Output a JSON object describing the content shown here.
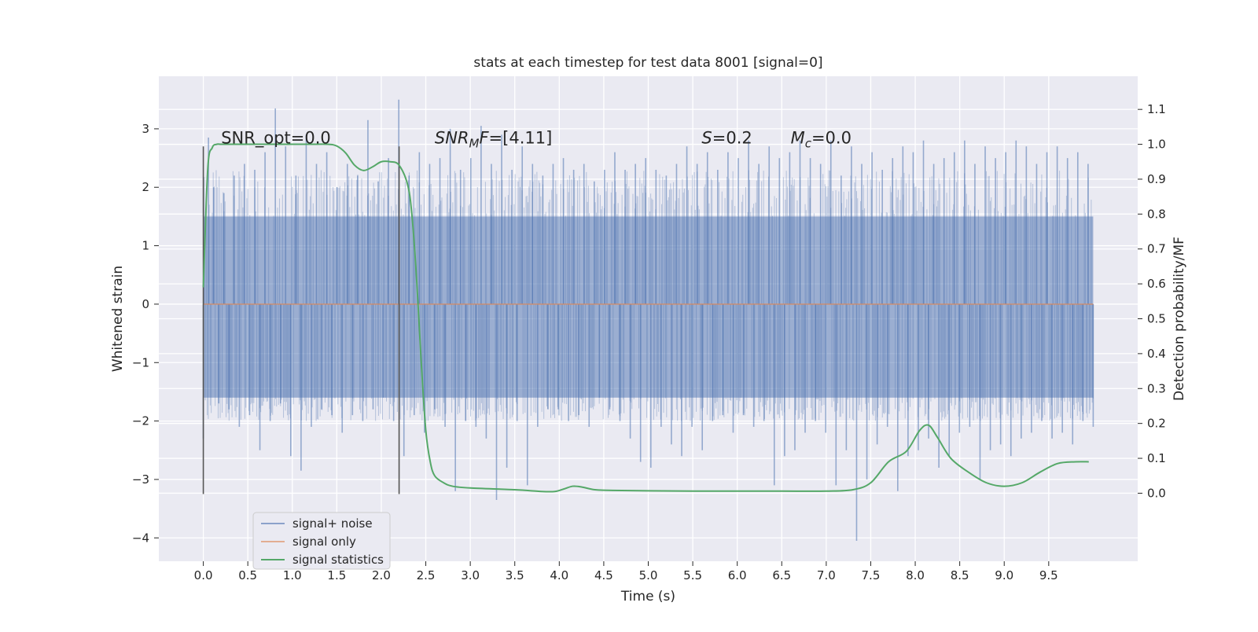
{
  "chart_data": {
    "type": "line",
    "title": "stats at each timestep for test data 8001 [signal=0]",
    "xlabel": "Time (s)",
    "ylabel": "Whitened strain",
    "y2label": "Detection probability/MF",
    "xlim": [
      -0.5,
      10.5
    ],
    "ylim": [
      -4.4,
      3.9
    ],
    "y2lim": [
      -0.195,
      1.195
    ],
    "x_ticks": [
      0.0,
      0.5,
      1.0,
      1.5,
      2.0,
      2.5,
      3.0,
      3.5,
      4.0,
      4.5,
      5.0,
      5.5,
      6.0,
      6.5,
      7.0,
      7.5,
      8.0,
      8.5,
      9.0,
      9.5
    ],
    "x_tick_labels": [
      "0.0",
      "0.5",
      "1.0",
      "1.5",
      "2.0",
      "2.5",
      "3.0",
      "3.5",
      "4.0",
      "4.5",
      "5.0",
      "5.5",
      "6.0",
      "6.5",
      "7.0",
      "7.5",
      "8.0",
      "8.5",
      "9.0",
      "9.5"
    ],
    "y_ticks": [
      -4,
      -3,
      -2,
      -1,
      0,
      1,
      2,
      3
    ],
    "y_tick_labels": [
      "−4",
      "−3",
      "−2",
      "−1",
      "0",
      "1",
      "2",
      "3"
    ],
    "y2_ticks": [
      0.0,
      0.1,
      0.2,
      0.3,
      0.4,
      0.5,
      0.6,
      0.7,
      0.8,
      0.9,
      1.0,
      1.1
    ],
    "y2_tick_labels": [
      "0.0",
      "0.1",
      "0.2",
      "0.3",
      "0.4",
      "0.5",
      "0.6",
      "0.7",
      "0.8",
      "0.9",
      "1.0",
      "1.1"
    ],
    "grid": true,
    "legend_position": "lower-left",
    "series": [
      {
        "name": "signal+ noise",
        "color": "#4c72b0",
        "axis": "left",
        "x_range": [
          0.0,
          10.0
        ],
        "sample_rate_hz": 100,
        "typical_range": [
          -1.6,
          1.5
        ],
        "values": [
          -2.3,
          2.85,
          2.0,
          -1.7,
          1.9,
          -1.8,
          2.2,
          -2.1,
          2.4,
          -1.9,
          2.3,
          -2.5,
          2.6,
          -2.0,
          3.35,
          -1.7,
          2.7,
          -2.6,
          2.2,
          -2.85,
          2.9,
          -2.1,
          2.4,
          -1.8,
          2.6,
          -1.9,
          2.0,
          -2.2,
          2.4,
          -1.9,
          2.2,
          -2.0,
          3.15,
          -1.8,
          2.1,
          -1.6,
          2.5,
          -2.0,
          3.5,
          -2.6,
          2.2,
          -1.9,
          2.6,
          -2.2,
          2.4,
          -1.8,
          2.5,
          -2.1,
          3.0,
          -3.2,
          2.3,
          -2.0,
          2.5,
          -2.1,
          3.05,
          -2.3,
          2.4,
          -3.35,
          2.9,
          -2.8,
          2.3,
          -2.0,
          2.7,
          -3.1,
          2.4,
          -2.1,
          2.2,
          -1.8,
          2.4,
          -1.8,
          2.5,
          -2.0,
          2.3,
          -1.9,
          2.4,
          -2.1,
          2.1,
          -1.6,
          2.3,
          -1.8,
          2.6,
          -2.0,
          2.3,
          -2.3,
          2.4,
          -2.7,
          2.5,
          -2.8,
          2.3,
          -2.1,
          2.2,
          -2.4,
          2.4,
          -2.6,
          2.7,
          -2.1,
          2.4,
          -2.5,
          2.6,
          -2.0,
          2.3,
          -1.9,
          2.6,
          -2.2,
          2.5,
          -1.9,
          2.8,
          -2.1,
          2.4,
          -2.0,
          2.7,
          -3.1,
          2.5,
          -2.6,
          2.6,
          -2.5,
          2.8,
          -2.2,
          2.5,
          -2.0,
          2.4,
          -2.2,
          2.8,
          -3.1,
          2.2,
          -2.5,
          2.7,
          -4.05,
          2.4,
          -3.0,
          2.6,
          -2.4,
          2.3,
          -2.1,
          2.5,
          -3.2,
          2.7,
          -2.6,
          2.6,
          -2.5,
          2.8,
          -2.3,
          2.4,
          -2.8,
          2.5,
          -2.6,
          2.6,
          -2.2,
          2.8,
          -2.1,
          2.4,
          -3.0,
          2.7,
          -2.5,
          2.5,
          -2.4,
          2.6,
          -2.6,
          2.8,
          -2.3,
          2.7,
          -2.2,
          2.4,
          -2.0,
          2.6,
          -2.3,
          2.7,
          -2.2,
          2.5,
          -2.4,
          2.6,
          -2.0,
          2.4,
          -2.1
        ]
      },
      {
        "name": "signal only",
        "color": "#dd8452",
        "axis": "left",
        "x": [
          0.0,
          10.0
        ],
        "y": [
          0.0,
          0.0
        ]
      },
      {
        "name": "signal statistics",
        "color": "#55a868",
        "axis": "right",
        "x": [
          0.0,
          0.05,
          0.1,
          0.15,
          0.2,
          0.3,
          0.5,
          0.8,
          1.0,
          1.2,
          1.4,
          1.5,
          1.6,
          1.7,
          1.8,
          1.9,
          2.0,
          2.1,
          2.2,
          2.3,
          2.35,
          2.4,
          2.45,
          2.5,
          2.55,
          2.6,
          2.7,
          2.8,
          3.0,
          3.5,
          3.8,
          3.95,
          4.05,
          4.15,
          4.25,
          4.4,
          4.6,
          5.0,
          5.5,
          6.0,
          6.5,
          7.0,
          7.3,
          7.5,
          7.7,
          7.9,
          8.05,
          8.15,
          8.25,
          8.4,
          8.6,
          8.8,
          9.0,
          9.2,
          9.4,
          9.6,
          9.8,
          9.95
        ],
        "y": [
          0.59,
          0.93,
          0.99,
          1.0,
          1.0,
          1.0,
          1.0,
          1.0,
          1.0,
          1.0,
          1.0,
          0.995,
          0.975,
          0.94,
          0.925,
          0.935,
          0.95,
          0.95,
          0.94,
          0.88,
          0.78,
          0.6,
          0.37,
          0.18,
          0.09,
          0.05,
          0.03,
          0.02,
          0.015,
          0.01,
          0.005,
          0.005,
          0.012,
          0.02,
          0.018,
          0.01,
          0.008,
          0.007,
          0.006,
          0.006,
          0.006,
          0.006,
          0.01,
          0.03,
          0.09,
          0.12,
          0.18,
          0.195,
          0.16,
          0.1,
          0.06,
          0.03,
          0.02,
          0.03,
          0.06,
          0.085,
          0.09,
          0.09
        ]
      }
    ],
    "vlines": [
      {
        "x": 0.0,
        "ymin": -3.25,
        "ymax": 2.7,
        "color": "#555555"
      },
      {
        "x": 2.2,
        "ymin": -3.25,
        "ymax": 2.7,
        "color": "#555555"
      }
    ],
    "annotations": [
      {
        "id": "snr-opt",
        "segments": [
          {
            "text": "SNR_opt=0.0",
            "style": "normal"
          }
        ],
        "x": 0.2,
        "y": 2.75
      },
      {
        "id": "snr-mf",
        "segments": [
          {
            "text": "SNR",
            "style": "italic"
          },
          {
            "text": "M",
            "style": "italic-sub"
          },
          {
            "text": "F",
            "style": "italic"
          },
          {
            "text": "=[4.11]",
            "style": "normal"
          }
        ],
        "x": 2.6,
        "y": 2.75
      },
      {
        "id": "s-stat",
        "segments": [
          {
            "text": "S",
            "style": "italic"
          },
          {
            "text": "=0.2",
            "style": "normal"
          }
        ],
        "x": 5.6,
        "y": 2.75
      },
      {
        "id": "mc-stat",
        "segments": [
          {
            "text": "M",
            "style": "italic"
          },
          {
            "text": "c",
            "style": "italic-sub"
          },
          {
            "text": "=0.0",
            "style": "normal"
          }
        ],
        "x": 6.6,
        "y": 2.75
      }
    ],
    "colors": {
      "background": "#eaeaf2",
      "grid": "#ffffff",
      "text": "#262626"
    }
  }
}
